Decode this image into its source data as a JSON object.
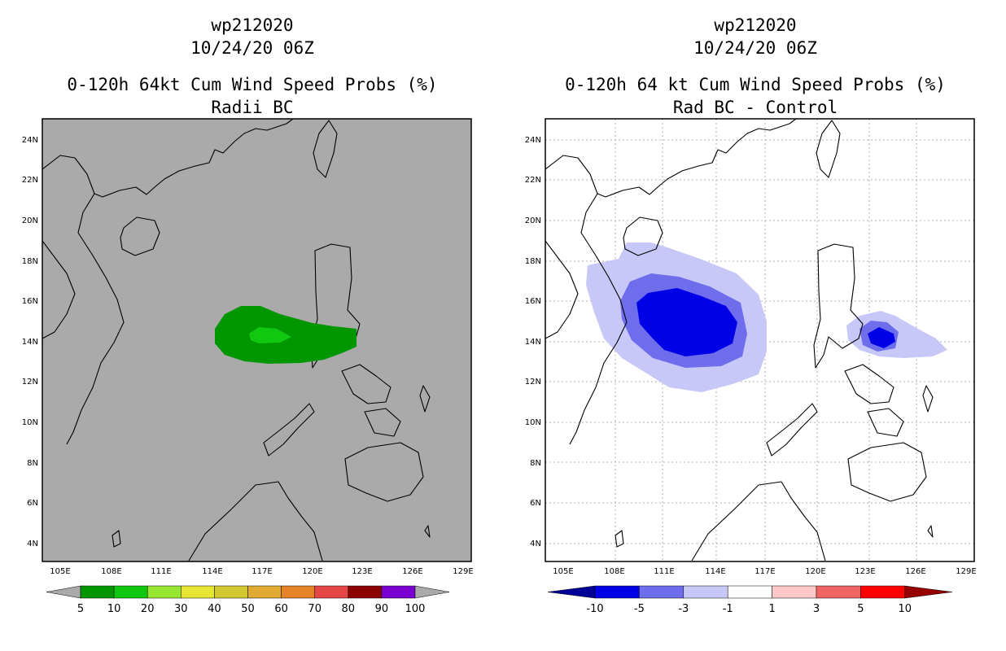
{
  "panels": [
    {
      "id": "radii",
      "storm": "wp212020",
      "datetime": "10/24/20 06Z",
      "title": "0-120h 64kt Cum Wind Speed Probs (%)",
      "subtitle": "Radii BC",
      "background": "#aaaaaa",
      "colorbar": {
        "colors": [
          "#009600",
          "#10c810",
          "#96e632",
          "#e6e632",
          "#d2c832",
          "#e1aa32",
          "#e68228",
          "#e64646",
          "#8c0000",
          "#7a00d2"
        ],
        "labels": [
          "5",
          "10",
          "20",
          "30",
          "40",
          "50",
          "60",
          "70",
          "80",
          "90",
          "100"
        ],
        "end_color": "#aaaaaa"
      }
    },
    {
      "id": "diff",
      "storm": "wp212020",
      "datetime": "10/24/20 06Z",
      "title": "0-120h 64 kt Cum Wind Speed Probs (%)",
      "subtitle": "Rad BC - Control",
      "background": "#ffffff",
      "colorbar": {
        "colors": [
          "#0000e6",
          "#6e6eec",
          "#c8c8f8",
          "#ffffff",
          "#ffc8c8",
          "#f06464",
          "#ff0000"
        ],
        "labels": [
          "-10",
          "-5",
          "-3",
          "-1",
          "1",
          "3",
          "5",
          "10"
        ],
        "left_color": "#000096",
        "right_color": "#960000"
      }
    }
  ],
  "axes": {
    "lon_labels": [
      "105E",
      "108E",
      "111E",
      "114E",
      "117E",
      "120E",
      "123E",
      "126E",
      "129E"
    ],
    "lat_labels": [
      "4N",
      "6N",
      "8N",
      "10N",
      "12N",
      "14N",
      "16N",
      "18N",
      "20N",
      "22N",
      "24N"
    ]
  }
}
